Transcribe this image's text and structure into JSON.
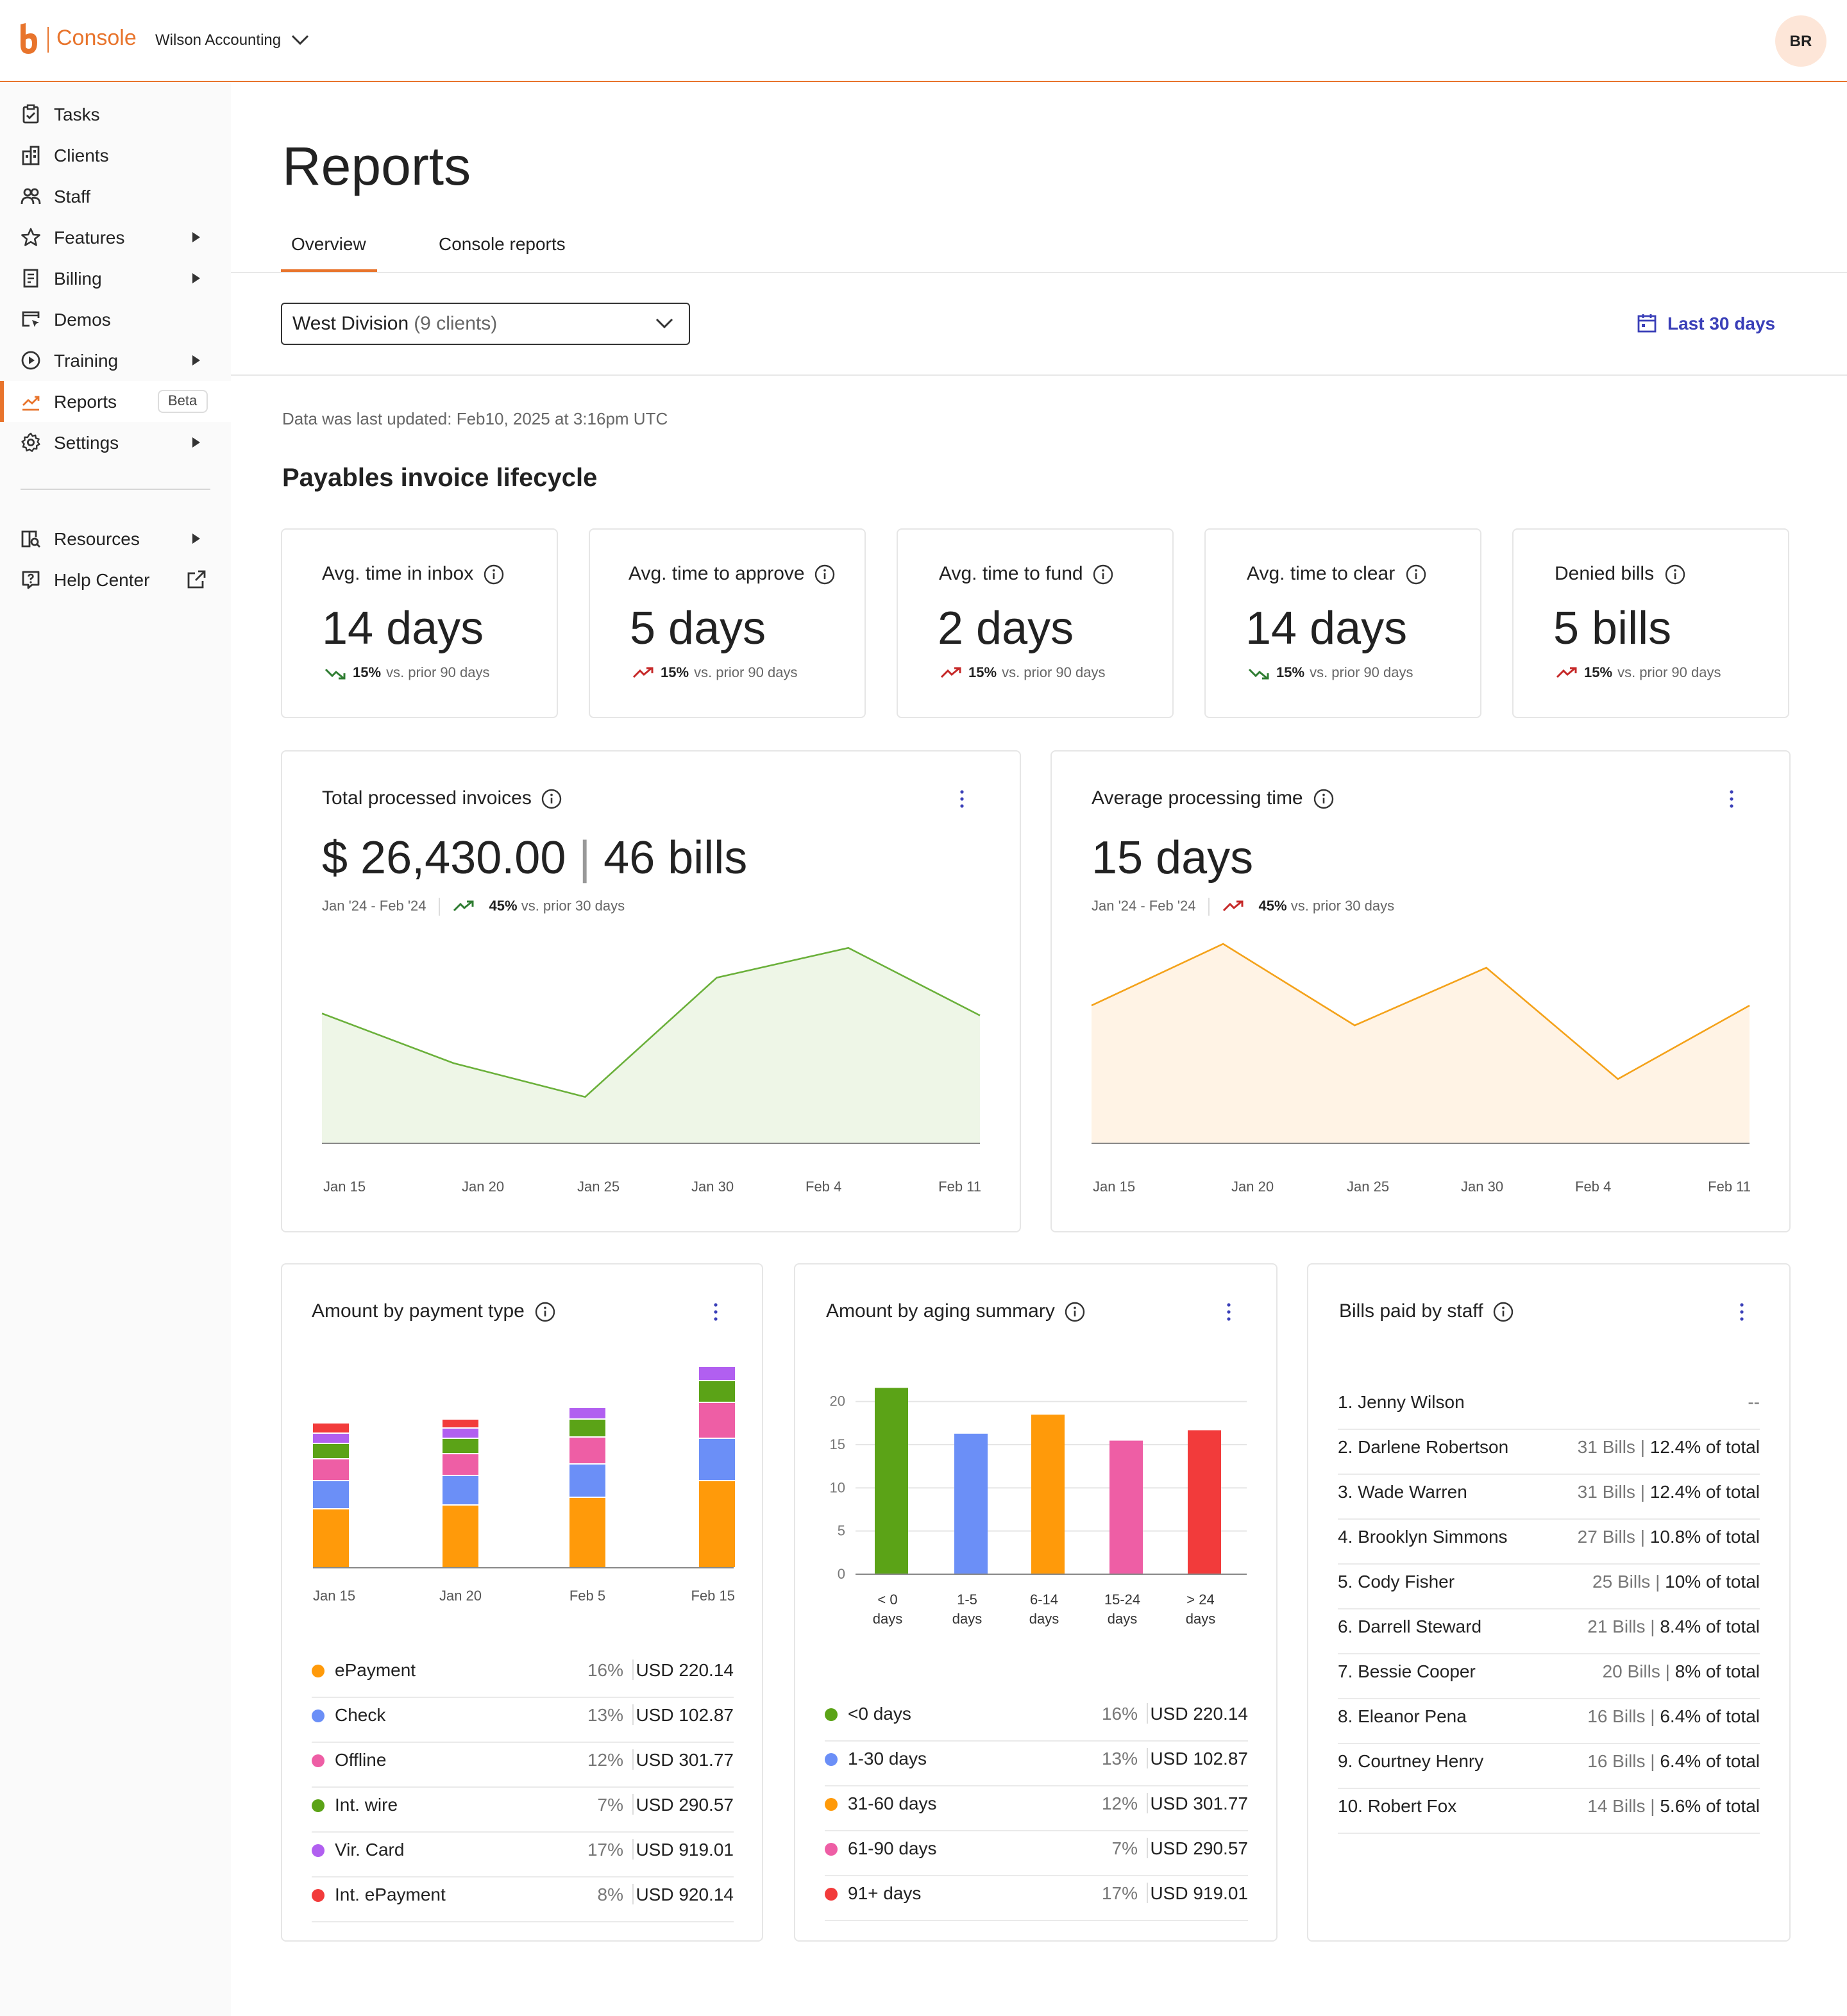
{
  "header": {
    "brand": "Console",
    "org_name": "Wilson Accounting",
    "avatar_initials": "BR",
    "accent_color": "#e8742c"
  },
  "sidebar": {
    "items": [
      {
        "label": "Tasks",
        "icon": "clipboard-check-icon"
      },
      {
        "label": "Clients",
        "icon": "building-icon"
      },
      {
        "label": "Staff",
        "icon": "users-icon"
      },
      {
        "label": "Features",
        "icon": "star-icon"
      },
      {
        "label": "Billing",
        "icon": "receipt-icon"
      },
      {
        "label": "Demos",
        "icon": "cursor-window-icon"
      },
      {
        "label": "Training",
        "icon": "play-circle-icon"
      },
      {
        "label": "Reports",
        "icon": "chart-line-icon",
        "badge": "Beta"
      },
      {
        "label": "Settings",
        "icon": "gear-icon"
      },
      {
        "label": "Resources",
        "icon": "book-search-icon"
      },
      {
        "label": "Help Center",
        "icon": "help-icon"
      }
    ]
  },
  "page": {
    "title": "Reports",
    "tabs": [
      "Overview",
      "Console reports"
    ],
    "division_name": "West Division",
    "division_count": "(9 clients)",
    "date_range": "Last 30 days",
    "updated": "Data was last updated: Feb10, 2025 at 3:16pm UTC",
    "section_title": "Payables invoice lifecycle"
  },
  "kpis": [
    {
      "title": "Avg. time in inbox",
      "value": "14 days",
      "delta": "15%",
      "delta_text": "vs. prior 90 days",
      "direction": "down"
    },
    {
      "title": "Avg. time to approve",
      "value": "5 days",
      "delta": "15%",
      "delta_text": "vs. prior 90 days",
      "direction": "up"
    },
    {
      "title": "Avg. time to fund",
      "value": "2 days",
      "delta": "15%",
      "delta_text": "vs. prior 90 days",
      "direction": "up"
    },
    {
      "title": "Avg. time to clear",
      "value": "14 days",
      "delta": "15%",
      "delta_text": "vs. prior 90 days",
      "direction": "down"
    },
    {
      "title": "Denied bills",
      "value": "5 bills",
      "delta": "15%",
      "delta_text": "vs. prior 90 days",
      "direction": "up"
    }
  ],
  "processed": {
    "title": "Total processed invoices",
    "amount": "$ 26,430.00",
    "separator": "|",
    "bills": "46 bills",
    "period": "Jan '24 - Feb '24",
    "delta": "45%",
    "delta_text": "vs. prior 30 days"
  },
  "avgtime": {
    "title": "Average processing time",
    "value": "15 days",
    "period": "Jan '24 - Feb '24",
    "delta": "45%",
    "delta_text": "vs. prior 30 days"
  },
  "payment": {
    "title": "Amount by payment type",
    "legend": [
      {
        "name": "ePayment",
        "pct": "16%",
        "amount": "USD 220.14",
        "color": "#ff9a0a"
      },
      {
        "name": "Check",
        "pct": "13%",
        "amount": "USD 102.87",
        "color": "#6b8ff7"
      },
      {
        "name": "Offline",
        "pct": "12%",
        "amount": "USD 301.77",
        "color": "#ee5ea5"
      },
      {
        "name": "Int. wire",
        "pct": "7%",
        "amount": "USD 290.57",
        "color": "#5ba317"
      },
      {
        "name": "Vir. Card",
        "pct": "17%",
        "amount": "USD 919.01",
        "color": "#b15ff0"
      },
      {
        "name": "Int. ePayment",
        "pct": "8%",
        "amount": "USD 920.14",
        "color": "#f23b3b"
      }
    ]
  },
  "aging": {
    "title": "Amount by aging summary",
    "legend": [
      {
        "name": "<0 days",
        "pct": "16%",
        "amount": "USD 220.14",
        "color": "#5ba317"
      },
      {
        "name": "1-30 days",
        "pct": "13%",
        "amount": "USD 102.87",
        "color": "#6b8ff7"
      },
      {
        "name": "31-60 days",
        "pct": "12%",
        "amount": "USD 301.77",
        "color": "#ff9a0a"
      },
      {
        "name": "61-90 days",
        "pct": "7%",
        "amount": "USD 290.57",
        "color": "#ee5ea5"
      },
      {
        "name": "91+ days",
        "pct": "17%",
        "amount": "USD 919.01",
        "color": "#f23b3b"
      }
    ]
  },
  "staff": {
    "title": "Bills paid by staff",
    "rows": [
      {
        "name": "1.  Jenny Wilson",
        "bills": "",
        "share": "--"
      },
      {
        "name": "2.  Darlene Robertson",
        "bills": "31 Bills",
        "share": "12.4% of total"
      },
      {
        "name": "3.  Wade Warren",
        "bills": "31 Bills",
        "share": "12.4% of total"
      },
      {
        "name": "4.  Brooklyn Simmons",
        "bills": "27 Bills",
        "share": "10.8% of total"
      },
      {
        "name": "5.  Cody Fisher",
        "bills": "25 Bills",
        "share": "10% of total"
      },
      {
        "name": "6.  Darrell Steward",
        "bills": "21 Bills",
        "share": "8.4% of total"
      },
      {
        "name": "7.  Bessie Cooper",
        "bills": "20 Bills",
        "share": "8% of total"
      },
      {
        "name": "8.  Eleanor Pena",
        "bills": "16 Bills",
        "share": "6.4% of total"
      },
      {
        "name": "9.  Courtney Henry",
        "bills": "16 Bills",
        "share": "6.4% of total"
      },
      {
        "name": "10.  Robert Fox",
        "bills": "14 Bills",
        "share": "5.6% of total"
      }
    ]
  },
  "chart_data": [
    {
      "type": "area",
      "title": "Total processed invoices",
      "tick_labels": [
        "Jan 15",
        "Jan 20",
        "Jan 25",
        "Jan 30",
        "Feb 4",
        "Feb 11"
      ],
      "values": [
        0.65,
        0.4,
        0.23,
        0.83,
        0.98,
        0.64
      ],
      "ylim": [
        0,
        1
      ],
      "color": "#6ab03a",
      "fill": "#eef6e7"
    },
    {
      "type": "area",
      "title": "Average processing time",
      "tick_labels": [
        "Jan 15",
        "Jan 20",
        "Jan 25",
        "Jan 30",
        "Feb 4",
        "Feb 11"
      ],
      "values": [
        0.69,
        1.0,
        0.59,
        0.88,
        0.32,
        0.69
      ],
      "ylim": [
        0,
        1
      ],
      "color": "#f4a21a",
      "fill": "#fff3e5"
    },
    {
      "type": "bar",
      "stacked": true,
      "title": "Amount by payment type",
      "tick_labels": [
        "Jan 15",
        "Jan 20",
        "Feb 5",
        "Feb 15"
      ],
      "series": [
        {
          "name": "ePayment",
          "values": [
            46,
            49,
            55,
            68
          ]
        },
        {
          "name": "Check",
          "values": [
            22,
            23,
            26,
            33
          ]
        },
        {
          "name": "Offline",
          "values": [
            17,
            17,
            21,
            28
          ]
        },
        {
          "name": "Int. wire",
          "values": [
            12,
            12,
            14,
            17
          ]
        },
        {
          "name": "Vir. Card",
          "values": [
            8,
            8,
            9,
            11
          ]
        },
        {
          "name": "Int. ePayment",
          "values": [
            8,
            7,
            0,
            0
          ]
        }
      ]
    },
    {
      "type": "bar",
      "title": "Amount by aging summary",
      "categories": [
        "< 0|days",
        "1-5|days",
        "6-14|days",
        "15-24|days",
        "> 24|days"
      ],
      "values": [
        21.5,
        16.2,
        18.4,
        15.4,
        16.6
      ],
      "yticks": [
        0,
        5,
        10,
        15,
        20
      ],
      "ylim": [
        0,
        20.2
      ],
      "colors": [
        "#5ba317",
        "#6b8ff7",
        "#ff9a0a",
        "#ee5ea5",
        "#f23b3b"
      ]
    }
  ]
}
